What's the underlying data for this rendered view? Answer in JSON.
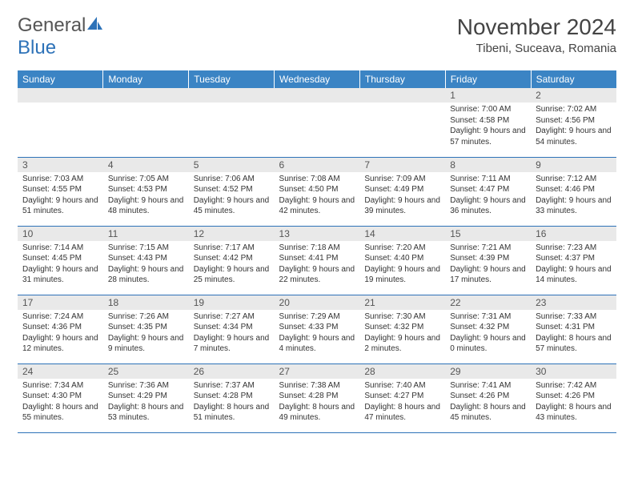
{
  "logo": {
    "text1": "General",
    "text2": "Blue"
  },
  "title": "November 2024",
  "location": "Tibeni, Suceava, Romania",
  "dayHeaders": [
    "Sunday",
    "Monday",
    "Tuesday",
    "Wednesday",
    "Thursday",
    "Friday",
    "Saturday"
  ],
  "colors": {
    "headerBg": "#3b84c4",
    "dayNumBg": "#e9e9e9",
    "border": "#2d72b8",
    "logoBlue": "#2d72b8"
  },
  "weeks": [
    [
      null,
      null,
      null,
      null,
      null,
      {
        "n": "1",
        "sr": "7:00 AM",
        "ss": "4:58 PM",
        "dl": "9 hours and 57 minutes."
      },
      {
        "n": "2",
        "sr": "7:02 AM",
        "ss": "4:56 PM",
        "dl": "9 hours and 54 minutes."
      }
    ],
    [
      {
        "n": "3",
        "sr": "7:03 AM",
        "ss": "4:55 PM",
        "dl": "9 hours and 51 minutes."
      },
      {
        "n": "4",
        "sr": "7:05 AM",
        "ss": "4:53 PM",
        "dl": "9 hours and 48 minutes."
      },
      {
        "n": "5",
        "sr": "7:06 AM",
        "ss": "4:52 PM",
        "dl": "9 hours and 45 minutes."
      },
      {
        "n": "6",
        "sr": "7:08 AM",
        "ss": "4:50 PM",
        "dl": "9 hours and 42 minutes."
      },
      {
        "n": "7",
        "sr": "7:09 AM",
        "ss": "4:49 PM",
        "dl": "9 hours and 39 minutes."
      },
      {
        "n": "8",
        "sr": "7:11 AM",
        "ss": "4:47 PM",
        "dl": "9 hours and 36 minutes."
      },
      {
        "n": "9",
        "sr": "7:12 AM",
        "ss": "4:46 PM",
        "dl": "9 hours and 33 minutes."
      }
    ],
    [
      {
        "n": "10",
        "sr": "7:14 AM",
        "ss": "4:45 PM",
        "dl": "9 hours and 31 minutes."
      },
      {
        "n": "11",
        "sr": "7:15 AM",
        "ss": "4:43 PM",
        "dl": "9 hours and 28 minutes."
      },
      {
        "n": "12",
        "sr": "7:17 AM",
        "ss": "4:42 PM",
        "dl": "9 hours and 25 minutes."
      },
      {
        "n": "13",
        "sr": "7:18 AM",
        "ss": "4:41 PM",
        "dl": "9 hours and 22 minutes."
      },
      {
        "n": "14",
        "sr": "7:20 AM",
        "ss": "4:40 PM",
        "dl": "9 hours and 19 minutes."
      },
      {
        "n": "15",
        "sr": "7:21 AM",
        "ss": "4:39 PM",
        "dl": "9 hours and 17 minutes."
      },
      {
        "n": "16",
        "sr": "7:23 AM",
        "ss": "4:37 PM",
        "dl": "9 hours and 14 minutes."
      }
    ],
    [
      {
        "n": "17",
        "sr": "7:24 AM",
        "ss": "4:36 PM",
        "dl": "9 hours and 12 minutes."
      },
      {
        "n": "18",
        "sr": "7:26 AM",
        "ss": "4:35 PM",
        "dl": "9 hours and 9 minutes."
      },
      {
        "n": "19",
        "sr": "7:27 AM",
        "ss": "4:34 PM",
        "dl": "9 hours and 7 minutes."
      },
      {
        "n": "20",
        "sr": "7:29 AM",
        "ss": "4:33 PM",
        "dl": "9 hours and 4 minutes."
      },
      {
        "n": "21",
        "sr": "7:30 AM",
        "ss": "4:32 PM",
        "dl": "9 hours and 2 minutes."
      },
      {
        "n": "22",
        "sr": "7:31 AM",
        "ss": "4:32 PM",
        "dl": "9 hours and 0 minutes."
      },
      {
        "n": "23",
        "sr": "7:33 AM",
        "ss": "4:31 PM",
        "dl": "8 hours and 57 minutes."
      }
    ],
    [
      {
        "n": "24",
        "sr": "7:34 AM",
        "ss": "4:30 PM",
        "dl": "8 hours and 55 minutes."
      },
      {
        "n": "25",
        "sr": "7:36 AM",
        "ss": "4:29 PM",
        "dl": "8 hours and 53 minutes."
      },
      {
        "n": "26",
        "sr": "7:37 AM",
        "ss": "4:28 PM",
        "dl": "8 hours and 51 minutes."
      },
      {
        "n": "27",
        "sr": "7:38 AM",
        "ss": "4:28 PM",
        "dl": "8 hours and 49 minutes."
      },
      {
        "n": "28",
        "sr": "7:40 AM",
        "ss": "4:27 PM",
        "dl": "8 hours and 47 minutes."
      },
      {
        "n": "29",
        "sr": "7:41 AM",
        "ss": "4:26 PM",
        "dl": "8 hours and 45 minutes."
      },
      {
        "n": "30",
        "sr": "7:42 AM",
        "ss": "4:26 PM",
        "dl": "8 hours and 43 minutes."
      }
    ]
  ],
  "labels": {
    "sunrise": "Sunrise:",
    "sunset": "Sunset:",
    "daylight": "Daylight:"
  }
}
